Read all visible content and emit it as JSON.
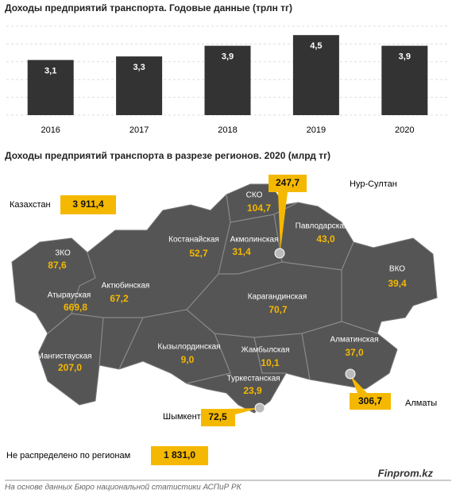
{
  "chart_data": {
    "type": "bar",
    "title": "Доходы предприятий транспорта. Годовые данные (трлн тг)",
    "categories": [
      "2016",
      "2017",
      "2018",
      "2019",
      "2020"
    ],
    "values": [
      3.1,
      3.3,
      3.9,
      4.5,
      3.9
    ],
    "value_labels": [
      "3,1",
      "3,3",
      "3,9",
      "4,5",
      "3,9"
    ],
    "color": "#333333",
    "ylim": [
      0,
      5
    ],
    "yticks": [
      0,
      1,
      2,
      3,
      4,
      5
    ],
    "grid": true
  },
  "map": {
    "title": "Доходы предприятий транспорта в разрезе регионов. 2020  (млрд тг)",
    "total": {
      "label": "Казахстан",
      "value": "3 911,4"
    },
    "regions": [
      {
        "name": "СКО",
        "value": "104,7"
      },
      {
        "name": "Костанайская",
        "value": "52,7"
      },
      {
        "name": "Акмолинская",
        "value": "31,4"
      },
      {
        "name": "Павлодарская",
        "value": "43,0"
      },
      {
        "name": "ВКО",
        "value": "39,4"
      },
      {
        "name": "ЗКО",
        "value": "87,6"
      },
      {
        "name": "Актюбинская",
        "value": "67,2"
      },
      {
        "name": "Атырауская",
        "value": "669,8"
      },
      {
        "name": "Карагандинская",
        "value": "70,7"
      },
      {
        "name": "Мангистауская",
        "value": "207,0"
      },
      {
        "name": "Кызылординская",
        "value": "9,0"
      },
      {
        "name": "Жамбылская",
        "value": "10,1"
      },
      {
        "name": "Алматинская",
        "value": "37,0"
      },
      {
        "name": "Туркестанская",
        "value": "23,9"
      }
    ],
    "cities": [
      {
        "name": "Нур-Султан",
        "value": "247,7"
      },
      {
        "name": "Алматы",
        "value": "306,7"
      },
      {
        "name": "Шымкент",
        "value": "72,5"
      }
    ],
    "unallocated": {
      "label": "Не распределено по регионам",
      "value": "1 831,0"
    }
  },
  "footer": {
    "source": "На основе данных Бюро национальной статистики АСПиР РК",
    "brand": "Finprom.kz"
  }
}
